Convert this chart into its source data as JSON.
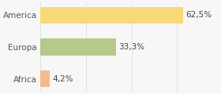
{
  "categories": [
    "Africa",
    "Europa",
    "America"
  ],
  "values": [
    4.2,
    33.3,
    62.5
  ],
  "labels": [
    "4,2%",
    "33,3%",
    "62,5%"
  ],
  "bar_colors": [
    "#f5b98a",
    "#b5c98a",
    "#f9d87a"
  ],
  "background_color": "#f7f7f7",
  "xlim": [
    0,
    78
  ],
  "label_fontsize": 7.5,
  "tick_fontsize": 7.5,
  "bar_height": 0.52
}
